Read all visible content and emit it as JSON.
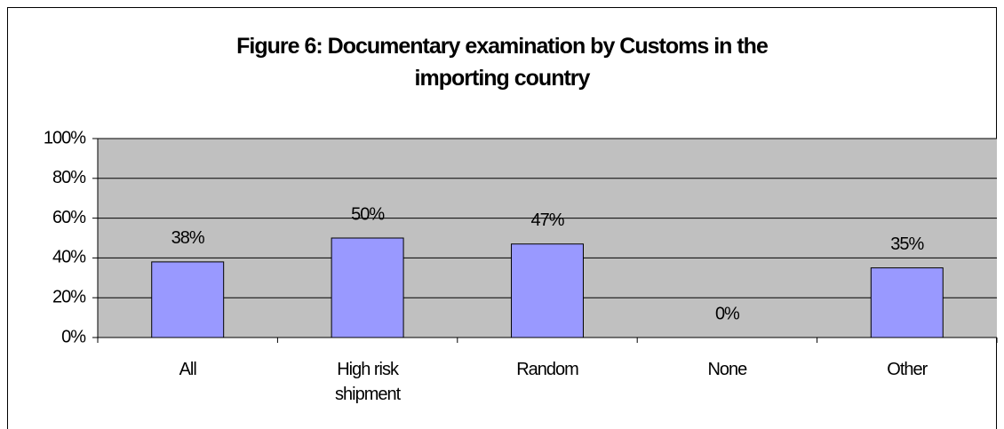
{
  "chart_data": {
    "type": "bar",
    "title": "Figure 6: Documentary examination by Customs in the importing country",
    "categories": [
      "All",
      "High risk shipment",
      "Random",
      "None",
      "Other"
    ],
    "values": [
      38,
      50,
      47,
      0,
      35
    ],
    "value_labels": [
      "38%",
      "50%",
      "47%",
      "0%",
      "35%"
    ],
    "color": "#9999ff",
    "ylim": [
      0,
      100
    ],
    "yticks": [
      {
        "value": 0,
        "label": "0%"
      },
      {
        "value": 20,
        "label": "20%"
      },
      {
        "value": 40,
        "label": "40%"
      },
      {
        "value": 60,
        "label": "60%"
      },
      {
        "value": 80,
        "label": "80%"
      },
      {
        "value": 100,
        "label": "100%"
      }
    ],
    "grid": true
  }
}
